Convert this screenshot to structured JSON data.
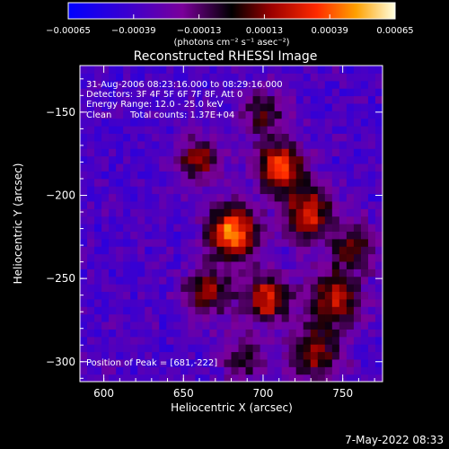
{
  "chart_data": {
    "type": "heatmap",
    "title": "Reconstructed RHESSI Image",
    "xlabel": "Heliocentric X (arcsec)",
    "ylabel": "Heliocentric Y (arcsec)",
    "xlim": [
      585,
      775
    ],
    "ylim": [
      -312,
      -122
    ],
    "x_ticks": [
      600,
      650,
      700,
      750
    ],
    "y_ticks": [
      -150,
      -200,
      -250,
      -300
    ],
    "colorbar": {
      "range": [
        -0.00065,
        0.00065
      ],
      "ticks": [
        -0.00065,
        -0.00039,
        -0.00013,
        0.00013,
        0.00039,
        0.00065
      ],
      "tick_labels": [
        "-0.00065",
        "-0.00039",
        "-0.00013",
        "0.00013",
        "0.00039",
        "0.00065"
      ],
      "unit_label": "(photons cm⁻² s⁻¹ asec⁻²)"
    },
    "annotations": {
      "time": "31-Aug-2006 08:23:16.000 to 08:29:16.000",
      "detectors": "Detectors: 3F 4F 5F 6F 7F 8F, Att 0",
      "energy": "Energy Range: 12.0 - 25.0 keV",
      "method": "Clean",
      "counts": "Total counts: 1.37E+04",
      "peak": "Position of Peak = [681,-222]"
    },
    "peak": [
      681,
      -222
    ],
    "sources": [
      {
        "x": 681,
        "y": -222,
        "amp": 0.00062,
        "sigma": 11
      },
      {
        "x": 711,
        "y": -182,
        "amp": 0.00055,
        "sigma": 10
      },
      {
        "x": 728,
        "y": -210,
        "amp": 0.00042,
        "sigma": 11
      },
      {
        "x": 702,
        "y": -262,
        "amp": 0.0004,
        "sigma": 10
      },
      {
        "x": 745,
        "y": -262,
        "amp": 0.00036,
        "sigma": 12
      },
      {
        "x": 660,
        "y": -178,
        "amp": 0.0003,
        "sigma": 9
      },
      {
        "x": 666,
        "y": -258,
        "amp": 0.0003,
        "sigma": 10
      },
      {
        "x": 732,
        "y": -295,
        "amp": 0.00024,
        "sigma": 12
      },
      {
        "x": 700,
        "y": -150,
        "amp": 0.00016,
        "sigma": 10
      },
      {
        "x": 757,
        "y": -230,
        "amp": 0.0002,
        "sigma": 10
      },
      {
        "x": 688,
        "y": -298,
        "amp": 0.00018,
        "sigma": 9
      }
    ],
    "background": -0.00036
  },
  "footer": {
    "date": "7-May-2022 08:33"
  }
}
